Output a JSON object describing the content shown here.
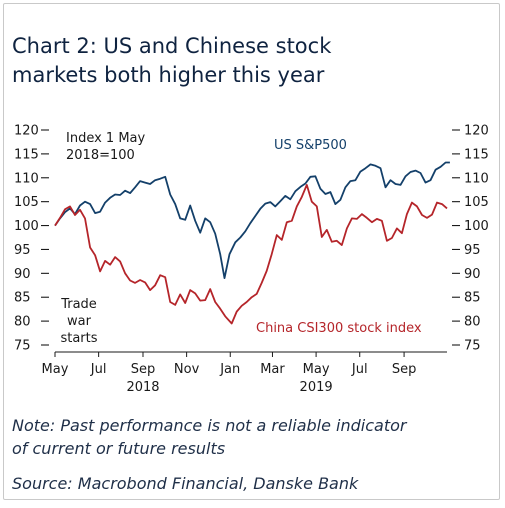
{
  "title_lines": [
    "Chart 2: US and Chinese stock",
    "markets both higher this year"
  ],
  "note_lines": [
    "Note: Past performance is not a reliable indicator",
    "of current or future results"
  ],
  "source": "Source: Macrobond Financial, Danske Bank",
  "annotations": {
    "index_line1": "Index 1 May",
    "index_line2": "2018=100",
    "trade_war": [
      "Trade",
      "war",
      "starts"
    ]
  },
  "colors": {
    "us": "#14406a",
    "china": "#b5252a",
    "axis": "#1a1a1a",
    "text": "#0f2340"
  },
  "chart_data": {
    "type": "line",
    "title": "Chart 2: US and Chinese stock markets both higher this year",
    "ylim": [
      75,
      120
    ],
    "yticks": [
      75,
      80,
      85,
      90,
      95,
      100,
      105,
      110,
      115,
      120
    ],
    "xlim": [
      "2018-05-01",
      "2019-10-31"
    ],
    "xtick_labels": [
      "May",
      "Jul",
      "Sep",
      "Nov",
      "Jan",
      "Mar",
      "May",
      "Jul",
      "Sep"
    ],
    "xtick_dates": [
      "2018-05-01",
      "2018-07-01",
      "2018-09-01",
      "2018-11-01",
      "2019-01-01",
      "2019-03-01",
      "2019-05-01",
      "2019-07-01",
      "2019-09-01"
    ],
    "year_labels": [
      {
        "label": "2018",
        "date": "2018-09-01"
      },
      {
        "label": "2019",
        "date": "2019-05-01"
      }
    ],
    "grid": false,
    "series": [
      {
        "name": "US S&P500",
        "points": [
          [
            "2018-05-01",
            100
          ],
          [
            "2018-05-08",
            101.5
          ],
          [
            "2018-05-15",
            102.8
          ],
          [
            "2018-05-22",
            103.6
          ],
          [
            "2018-05-29",
            102.4
          ],
          [
            "2018-06-05",
            104.2
          ],
          [
            "2018-06-12",
            105
          ],
          [
            "2018-06-19",
            104.5
          ],
          [
            "2018-06-26",
            102.6
          ],
          [
            "2018-07-03",
            102.9
          ],
          [
            "2018-07-10",
            104.8
          ],
          [
            "2018-07-17",
            105.8
          ],
          [
            "2018-07-24",
            106.5
          ],
          [
            "2018-07-31",
            106.4
          ],
          [
            "2018-08-07",
            107.3
          ],
          [
            "2018-08-14",
            106.8
          ],
          [
            "2018-08-21",
            108
          ],
          [
            "2018-08-28",
            109.3
          ],
          [
            "2018-09-04",
            109
          ],
          [
            "2018-09-11",
            108.7
          ],
          [
            "2018-09-18",
            109.5
          ],
          [
            "2018-09-25",
            109.8
          ],
          [
            "2018-10-02",
            110.2
          ],
          [
            "2018-10-09",
            106.5
          ],
          [
            "2018-10-16",
            104.5
          ],
          [
            "2018-10-23",
            101.5
          ],
          [
            "2018-10-30",
            101.2
          ],
          [
            "2018-11-06",
            104.2
          ],
          [
            "2018-11-13",
            101
          ],
          [
            "2018-11-20",
            98.5
          ],
          [
            "2018-11-27",
            101.5
          ],
          [
            "2018-12-04",
            100.7
          ],
          [
            "2018-12-11",
            98.3
          ],
          [
            "2018-12-18",
            94
          ],
          [
            "2018-12-24",
            89
          ],
          [
            "2018-12-31",
            94
          ],
          [
            "2019-01-08",
            96.5
          ],
          [
            "2019-01-15",
            97.5
          ],
          [
            "2019-01-22",
            98.8
          ],
          [
            "2019-01-29",
            100.5
          ],
          [
            "2019-02-05",
            102
          ],
          [
            "2019-02-12",
            103.5
          ],
          [
            "2019-02-19",
            104.6
          ],
          [
            "2019-02-26",
            104.9
          ],
          [
            "2019-03-05",
            104
          ],
          [
            "2019-03-12",
            105.1
          ],
          [
            "2019-03-19",
            106.2
          ],
          [
            "2019-03-26",
            105.5
          ],
          [
            "2019-04-02",
            107.2
          ],
          [
            "2019-04-09",
            108.1
          ],
          [
            "2019-04-16",
            108.8
          ],
          [
            "2019-04-23",
            110.2
          ],
          [
            "2019-04-30",
            110.3
          ],
          [
            "2019-05-07",
            107.7
          ],
          [
            "2019-05-14",
            106.6
          ],
          [
            "2019-05-21",
            107
          ],
          [
            "2019-05-28",
            104.5
          ],
          [
            "2019-06-04",
            105.4
          ],
          [
            "2019-06-11",
            108
          ],
          [
            "2019-06-18",
            109.3
          ],
          [
            "2019-06-25",
            109.5
          ],
          [
            "2019-07-02",
            111.3
          ],
          [
            "2019-07-09",
            112
          ],
          [
            "2019-07-16",
            112.8
          ],
          [
            "2019-07-23",
            112.5
          ],
          [
            "2019-07-30",
            112
          ],
          [
            "2019-08-06",
            108
          ],
          [
            "2019-08-13",
            109.5
          ],
          [
            "2019-08-20",
            108.7
          ],
          [
            "2019-08-27",
            108.5
          ],
          [
            "2019-09-03",
            110.3
          ],
          [
            "2019-09-10",
            111.2
          ],
          [
            "2019-09-17",
            111.5
          ],
          [
            "2019-09-24",
            111
          ],
          [
            "2019-10-01",
            109
          ],
          [
            "2019-10-08",
            109.5
          ],
          [
            "2019-10-15",
            111.7
          ],
          [
            "2019-10-22",
            112.3
          ],
          [
            "2019-10-29",
            113.2
          ],
          [
            "2019-11-04",
            113.2
          ]
        ]
      },
      {
        "name": "China CSI300 stock index",
        "points": [
          [
            "2018-05-01",
            100
          ],
          [
            "2018-05-08",
            101.6
          ],
          [
            "2018-05-15",
            103.4
          ],
          [
            "2018-05-22",
            104
          ],
          [
            "2018-05-29",
            102.2
          ],
          [
            "2018-06-05",
            103.3
          ],
          [
            "2018-06-12",
            101.5
          ],
          [
            "2018-06-19",
            95.4
          ],
          [
            "2018-06-26",
            93.8
          ],
          [
            "2018-07-03",
            90.4
          ],
          [
            "2018-07-10",
            92.6
          ],
          [
            "2018-07-17",
            91.8
          ],
          [
            "2018-07-24",
            93.4
          ],
          [
            "2018-07-31",
            92.5
          ],
          [
            "2018-08-07",
            90
          ],
          [
            "2018-08-14",
            88.5
          ],
          [
            "2018-08-21",
            88
          ],
          [
            "2018-08-28",
            88.6
          ],
          [
            "2018-09-04",
            88.1
          ],
          [
            "2018-09-11",
            86.5
          ],
          [
            "2018-09-18",
            87.5
          ],
          [
            "2018-09-25",
            89.6
          ],
          [
            "2018-10-02",
            89.2
          ],
          [
            "2018-10-09",
            84
          ],
          [
            "2018-10-16",
            83.4
          ],
          [
            "2018-10-23",
            85.6
          ],
          [
            "2018-10-30",
            83.8
          ],
          [
            "2018-11-06",
            86.5
          ],
          [
            "2018-11-13",
            85.8
          ],
          [
            "2018-11-20",
            84.3
          ],
          [
            "2018-11-27",
            84.4
          ],
          [
            "2018-12-04",
            86.7
          ],
          [
            "2018-12-11",
            84
          ],
          [
            "2018-12-18",
            82.6
          ],
          [
            "2018-12-25",
            81
          ],
          [
            "2019-01-03",
            79.5
          ],
          [
            "2019-01-10",
            82
          ],
          [
            "2019-01-17",
            83.2
          ],
          [
            "2019-01-24",
            84
          ],
          [
            "2019-01-31",
            85
          ],
          [
            "2019-02-07",
            85.7
          ],
          [
            "2019-02-14",
            88
          ],
          [
            "2019-02-21",
            90.5
          ],
          [
            "2019-02-28",
            94
          ],
          [
            "2019-03-07",
            98
          ],
          [
            "2019-03-14",
            97
          ],
          [
            "2019-03-21",
            100.7
          ],
          [
            "2019-03-28",
            101
          ],
          [
            "2019-04-04",
            104
          ],
          [
            "2019-04-11",
            106
          ],
          [
            "2019-04-18",
            108.5
          ],
          [
            "2019-04-25",
            105
          ],
          [
            "2019-05-02",
            104
          ],
          [
            "2019-05-09",
            97.6
          ],
          [
            "2019-05-16",
            99.1
          ],
          [
            "2019-05-23",
            96.6
          ],
          [
            "2019-05-30",
            96.8
          ],
          [
            "2019-06-06",
            95.9
          ],
          [
            "2019-06-13",
            99.4
          ],
          [
            "2019-06-20",
            101.5
          ],
          [
            "2019-06-27",
            101.4
          ],
          [
            "2019-07-04",
            102.4
          ],
          [
            "2019-07-11",
            101.6
          ],
          [
            "2019-07-18",
            100.7
          ],
          [
            "2019-07-25",
            101.4
          ],
          [
            "2019-08-01",
            101
          ],
          [
            "2019-08-08",
            96.8
          ],
          [
            "2019-08-15",
            97.4
          ],
          [
            "2019-08-22",
            99.4
          ],
          [
            "2019-08-29",
            98.4
          ],
          [
            "2019-09-05",
            102.4
          ],
          [
            "2019-09-12",
            104.8
          ],
          [
            "2019-09-19",
            104
          ],
          [
            "2019-09-26",
            102.2
          ],
          [
            "2019-10-03",
            101.6
          ],
          [
            "2019-10-10",
            102.3
          ],
          [
            "2019-10-17",
            104.8
          ],
          [
            "2019-10-24",
            104.5
          ],
          [
            "2019-10-31",
            103.6
          ]
        ]
      }
    ]
  }
}
